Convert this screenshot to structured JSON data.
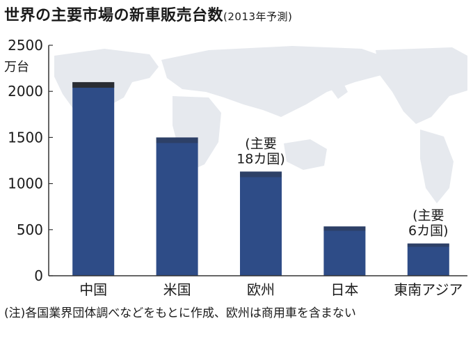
{
  "title": "世界の主要市場の新車販売台数",
  "subtitle": "(2013年予測)",
  "note": "(注)各国業界団体調べなどをもとに作成、欧州は商用車を含まない",
  "colors": {
    "bar": "#2e4c87",
    "map": "#e6e9ee",
    "axis": "#333333",
    "cap": "#2a2a2a"
  },
  "chart_data": {
    "type": "bar",
    "title": "世界の主要市場の新車販売台数",
    "subtitle": "(2013年予測)",
    "ylabel": "万台",
    "ylim": [
      0,
      2500
    ],
    "yticks": [
      0,
      500,
      1000,
      1500,
      2000,
      2500
    ],
    "grid": false,
    "categories": [
      "中国",
      "米国",
      "欧州",
      "日本",
      "東南アジア"
    ],
    "values": [
      2100,
      1500,
      1130,
      535,
      350
    ],
    "annotations": [
      {
        "category": "欧州",
        "lines": [
          "(主要",
          "18カ国)"
        ]
      },
      {
        "category": "東南アジア",
        "lines": [
          "(主要",
          "6カ国)"
        ]
      }
    ]
  }
}
